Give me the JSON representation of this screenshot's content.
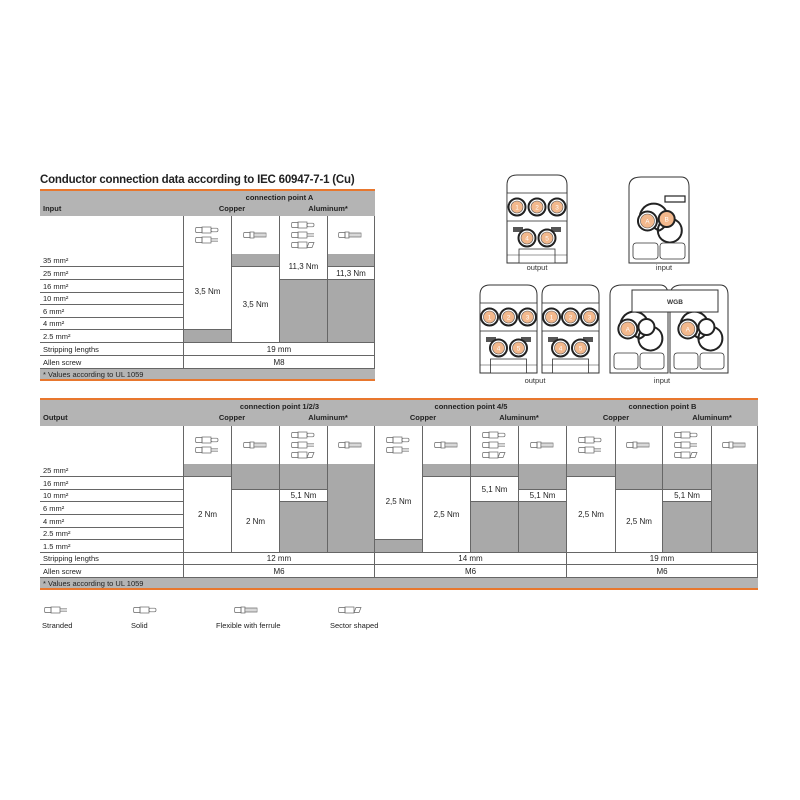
{
  "colors": {
    "accent": "#e8772e",
    "header_gray": "#b4b4b4",
    "na_gray": "#a9a9a9"
  },
  "title": "Conductor connection data according to IEC 60947-7-1 (Cu)",
  "input_table": {
    "row_header": "Input",
    "groups": [
      {
        "name": "connection point A",
        "copper_label": "Copper",
        "aluminum_label": "Aluminum*",
        "columns": [
          {
            "icons": [
              "solid-conductor-icon",
              "stranded-conductor-icon"
            ],
            "values": [
              "3,5 Nm",
              "3,5 Nm",
              "3,5 Nm",
              "3,5 Nm",
              "3,5 Nm",
              "3,5 Nm",
              null
            ]
          },
          {
            "icons": [
              "ferrule-conductor-icon"
            ],
            "values": [
              null,
              "3,5 Nm",
              "3,5 Nm",
              "3,5 Nm",
              "3,5 Nm",
              "3,5 Nm",
              "3,5 Nm"
            ]
          },
          {
            "icons": [
              "solid-conductor-icon",
              "stranded-conductor-icon",
              "sector-conductor-icon"
            ],
            "values": [
              "11,3 Nm",
              "11,3 Nm",
              null,
              null,
              null,
              null,
              null
            ]
          },
          {
            "icons": [
              "ferrule-conductor-icon"
            ],
            "values": [
              null,
              "11,3 Nm",
              null,
              null,
              null,
              null,
              null
            ]
          }
        ],
        "stripping_length": "19 mm",
        "allen_screw": "M8"
      }
    ],
    "sizes": [
      "35 mm²",
      "25 mm²",
      "16 mm²",
      "10 mm²",
      "6 mm²",
      "4 mm²",
      "2.5 mm²"
    ],
    "stripping_label": "Stripping lengths",
    "allen_label": "Allen screw",
    "footnote": "* Values according to UL 1059"
  },
  "output_table": {
    "row_header": "Output",
    "groups": [
      {
        "name": "connection point 1/2/3",
        "copper_label": "Copper",
        "aluminum_label": "Aluminum*",
        "columns": [
          {
            "icons": [
              "solid-conductor-icon",
              "stranded-conductor-icon"
            ],
            "values": [
              null,
              "2 Nm",
              "2 Nm",
              "2 Nm",
              "2 Nm",
              "2 Nm",
              "2 Nm"
            ]
          },
          {
            "icons": [
              "ferrule-conductor-icon"
            ],
            "values": [
              null,
              null,
              "2 Nm",
              "2 Nm",
              "2 Nm",
              "2 Nm",
              "2 Nm"
            ]
          },
          {
            "icons": [
              "solid-conductor-icon",
              "stranded-conductor-icon",
              "sector-conductor-icon"
            ],
            "values": [
              null,
              null,
              "5,1 Nm",
              null,
              null,
              null,
              null
            ]
          },
          {
            "icons": [
              "ferrule-conductor-icon"
            ],
            "values": [
              null,
              null,
              null,
              null,
              null,
              null,
              null
            ]
          }
        ],
        "stripping_length": "12 mm",
        "allen_screw": "M6"
      },
      {
        "name": "connection point 4/5",
        "copper_label": "Copper",
        "aluminum_label": "Aluminum*",
        "columns": [
          {
            "icons": [
              "solid-conductor-icon",
              "stranded-conductor-icon"
            ],
            "values": [
              "2,5 Nm",
              "2,5 Nm",
              "2,5 Nm",
              "2,5 Nm",
              "2,5 Nm",
              "2,5 Nm",
              null
            ]
          },
          {
            "icons": [
              "ferrule-conductor-icon"
            ],
            "values": [
              null,
              "2,5 Nm",
              "2,5 Nm",
              "2,5 Nm",
              "2,5 Nm",
              "2,5 Nm",
              "2,5 Nm"
            ]
          },
          {
            "icons": [
              "solid-conductor-icon",
              "stranded-conductor-icon",
              "sector-conductor-icon"
            ],
            "values": [
              null,
              "5,1 Nm",
              "5,1 Nm",
              null,
              null,
              null,
              null
            ]
          },
          {
            "icons": [
              "ferrule-conductor-icon"
            ],
            "values": [
              null,
              null,
              "5,1 Nm",
              null,
              null,
              null,
              null
            ]
          }
        ],
        "stripping_length": "14 mm",
        "allen_screw": "M6"
      },
      {
        "name": "connection point B",
        "copper_label": "Copper",
        "aluminum_label": "Aluminum*",
        "columns": [
          {
            "icons": [
              "solid-conductor-icon",
              "stranded-conductor-icon"
            ],
            "values": [
              null,
              "2,5 Nm",
              "2,5 Nm",
              "2,5 Nm",
              "2,5 Nm",
              "2,5 Nm",
              "2,5 Nm"
            ]
          },
          {
            "icons": [
              "ferrule-conductor-icon"
            ],
            "values": [
              null,
              null,
              "2,5 Nm",
              "2,5 Nm",
              "2,5 Nm",
              "2,5 Nm",
              "2,5 Nm"
            ]
          },
          {
            "icons": [
              "solid-conductor-icon",
              "stranded-conductor-icon",
              "sector-conductor-icon"
            ],
            "values": [
              null,
              null,
              "5,1 Nm",
              null,
              null,
              null,
              null
            ]
          },
          {
            "icons": [
              "ferrule-conductor-icon"
            ],
            "values": [
              null,
              null,
              null,
              null,
              null,
              null,
              null
            ]
          }
        ],
        "stripping_length": "19 mm",
        "allen_screw": "M6"
      }
    ],
    "sizes": [
      "25 mm²",
      "16 mm²",
      "10 mm²",
      "6 mm²",
      "4 mm²",
      "2.5 mm²",
      "1.5 mm²"
    ],
    "stripping_label": "Stripping lengths",
    "allen_label": "Allen screw",
    "footnote": "* Values according to UL 1059"
  },
  "legend": [
    {
      "icon": "stranded-conductor-icon",
      "label": "Stranded"
    },
    {
      "icon": "solid-conductor-icon",
      "label": "Solid"
    },
    {
      "icon": "ferrule-conductor-icon",
      "label": "Flexible with ferrule"
    },
    {
      "icon": "sector-conductor-icon",
      "label": "Sector shaped"
    }
  ],
  "products": {
    "output_label": "output",
    "input_label": "input",
    "output_points": [
      "1",
      "2",
      "3",
      "4",
      "5"
    ],
    "input_points": [
      "A",
      "B"
    ],
    "module_label": "WGB"
  }
}
